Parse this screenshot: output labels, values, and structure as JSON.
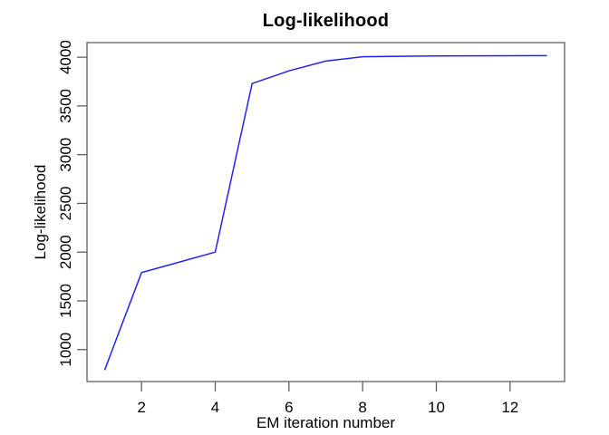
{
  "chart_data": {
    "type": "line",
    "title": "Log-likelihood",
    "xlabel": "EM iteration number",
    "ylabel": "Log-likelihood",
    "x": [
      1,
      2,
      3,
      4,
      5,
      6,
      7,
      8,
      9,
      10,
      11,
      12,
      13
    ],
    "y": [
      790,
      1790,
      1895,
      2000,
      3730,
      3860,
      3960,
      4005,
      4010,
      4013,
      4014,
      4015,
      4016
    ],
    "series_name": "log-likelihood",
    "xticks": [
      2,
      4,
      6,
      8,
      10,
      12
    ],
    "yticks": [
      1000,
      1500,
      2000,
      2500,
      3000,
      3500,
      4000
    ],
    "xlim": [
      0.52,
      13.48
    ],
    "ylim": [
      672,
      4150
    ],
    "grid": false,
    "legend": "none",
    "line_color": "#2222ee",
    "axis_color": "#606060",
    "text_color": "#000000",
    "background_color": "#ffffff"
  }
}
